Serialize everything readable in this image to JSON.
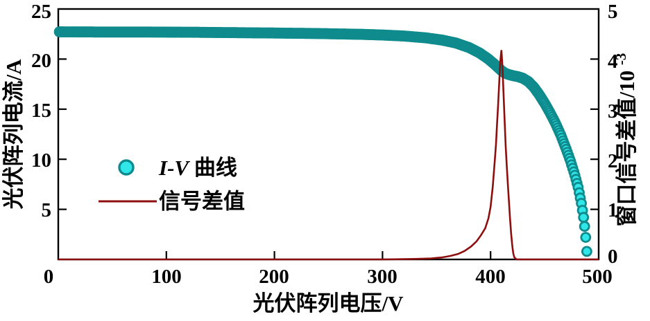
{
  "figure": {
    "colors": {
      "iv_marker_fill": "#30e6e9",
      "iv_marker_stroke": "#0f8b8d",
      "signal_line": "#8e0e0e",
      "axis": "#000000"
    }
  },
  "labels": {
    "xlabel": "光伏阵列电压/V",
    "ylabel_left": "光伏阵列电流/A",
    "ylabel_right_main": "窗口信号差值/10",
    "ylabel_right_exp": "-3"
  },
  "legend": {
    "iv_prefix": "I-V",
    "iv_suffix": "曲线",
    "signal_label": "信号差值"
  },
  "chart_data": {
    "type": "line",
    "title": "",
    "xlabel": "光伏阵列电压/V",
    "ylabel_left": "光伏阵列电流/A",
    "ylabel_right": "窗口信号差值/10^-3",
    "xlim": [
      0,
      500
    ],
    "ylim_left": [
      0,
      25
    ],
    "ylim_right": [
      0,
      5
    ],
    "grid": false,
    "legend_position": "center-left",
    "x_tick_labels": [
      "0",
      "100",
      "200",
      "300",
      "400",
      "500"
    ],
    "y_left_tick_labels": [
      "25",
      "20",
      "15",
      "10",
      "5"
    ],
    "y_right_tick_labels": [
      "5",
      "4",
      "3",
      "2",
      "1",
      "0"
    ],
    "tick_marks": {
      "x": [
        100,
        200,
        300,
        400
      ],
      "y_left": [
        5,
        10,
        15,
        20
      ],
      "y_right": [
        1,
        2,
        3,
        4
      ]
    },
    "series": [
      {
        "name": "I-V曲线",
        "axis": "left",
        "style": "markers",
        "marker": "circle",
        "points": [
          [
            0,
            22.72
          ],
          [
            40,
            22.7
          ],
          [
            80,
            22.7
          ],
          [
            120,
            22.68
          ],
          [
            160,
            22.64
          ],
          [
            200,
            22.6
          ],
          [
            240,
            22.55
          ],
          [
            280,
            22.47
          ],
          [
            300,
            22.4
          ],
          [
            320,
            22.3
          ],
          [
            340,
            22.12
          ],
          [
            355,
            21.9
          ],
          [
            368,
            21.6
          ],
          [
            380,
            21.15
          ],
          [
            390,
            20.6
          ],
          [
            398,
            20.0
          ],
          [
            404,
            19.45
          ],
          [
            408,
            19.05
          ],
          [
            410,
            18.85
          ],
          [
            413,
            18.62
          ],
          [
            416,
            18.48
          ],
          [
            420,
            18.36
          ],
          [
            425,
            18.25
          ],
          [
            430,
            18.08
          ],
          [
            435,
            17.75
          ],
          [
            440,
            17.2
          ],
          [
            445,
            16.45
          ],
          [
            450,
            15.6
          ],
          [
            455,
            14.65
          ],
          [
            460,
            13.6
          ],
          [
            465,
            12.4
          ],
          [
            470,
            11.0
          ],
          [
            474,
            9.8
          ],
          [
            478,
            8.4
          ],
          [
            481,
            7.2
          ],
          [
            484,
            5.6
          ],
          [
            486,
            4.2
          ],
          [
            487,
            3.3
          ],
          [
            488,
            2.2
          ],
          [
            489,
            0.8
          ]
        ]
      },
      {
        "name": "信号差值",
        "axis": "right",
        "style": "line",
        "points": [
          [
            0,
            0
          ],
          [
            60,
            0
          ],
          [
            120,
            0
          ],
          [
            180,
            0
          ],
          [
            240,
            0
          ],
          [
            300,
            0
          ],
          [
            330,
            0.01
          ],
          [
            345,
            0.02
          ],
          [
            355,
            0.04
          ],
          [
            363,
            0.07
          ],
          [
            370,
            0.11
          ],
          [
            376,
            0.17
          ],
          [
            382,
            0.26
          ],
          [
            387,
            0.36
          ],
          [
            391,
            0.48
          ],
          [
            395,
            0.62
          ],
          [
            398,
            0.82
          ],
          [
            400,
            1.05
          ],
          [
            402,
            1.45
          ],
          [
            404,
            2.0
          ],
          [
            405,
            2.3
          ],
          [
            406,
            2.7
          ],
          [
            407,
            3.1
          ],
          [
            408,
            3.55
          ],
          [
            409,
            3.95
          ],
          [
            410,
            4.18
          ],
          [
            411,
            3.85
          ],
          [
            412,
            3.3
          ],
          [
            413,
            2.75
          ],
          [
            414,
            2.25
          ],
          [
            415,
            1.85
          ],
          [
            416,
            1.5
          ],
          [
            417,
            1.15
          ],
          [
            418,
            0.82
          ],
          [
            419,
            0.52
          ],
          [
            420,
            0.28
          ],
          [
            421,
            0.12
          ],
          [
            422,
            0.04
          ],
          [
            424,
            0
          ],
          [
            450,
            0
          ],
          [
            475,
            0
          ],
          [
            500,
            0
          ]
        ]
      }
    ]
  }
}
